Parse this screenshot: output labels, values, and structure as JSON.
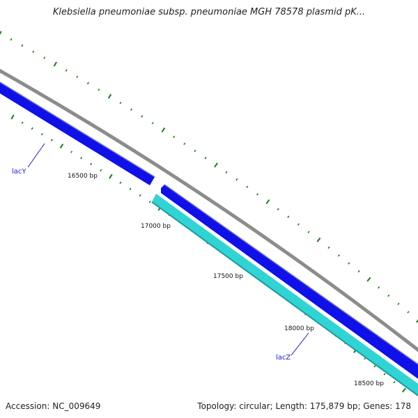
{
  "title": "Klebsiella pneumoniae subsp. pneumoniae MGH 78578 plasmid pK...",
  "footer": {
    "accession": "Accession: NC_009649",
    "summary": "Topology: circular; Length: 175,879 bp; Genes: 178"
  },
  "colors": {
    "backbone": "#8c8c8c",
    "forward_gene": "#1010e8",
    "reverse_gene": "#30d4d4",
    "ticks": "#1a7a1a",
    "gene_label": "#1a1adc"
  },
  "ticks": {
    "labels": [
      "16500 bp",
      "17000 bp",
      "17500 bp",
      "18000 bp",
      "18500 bp"
    ]
  },
  "genes": [
    {
      "name": "lacY",
      "strand": "+"
    },
    {
      "name": "lacZ",
      "strand": "-"
    }
  ]
}
